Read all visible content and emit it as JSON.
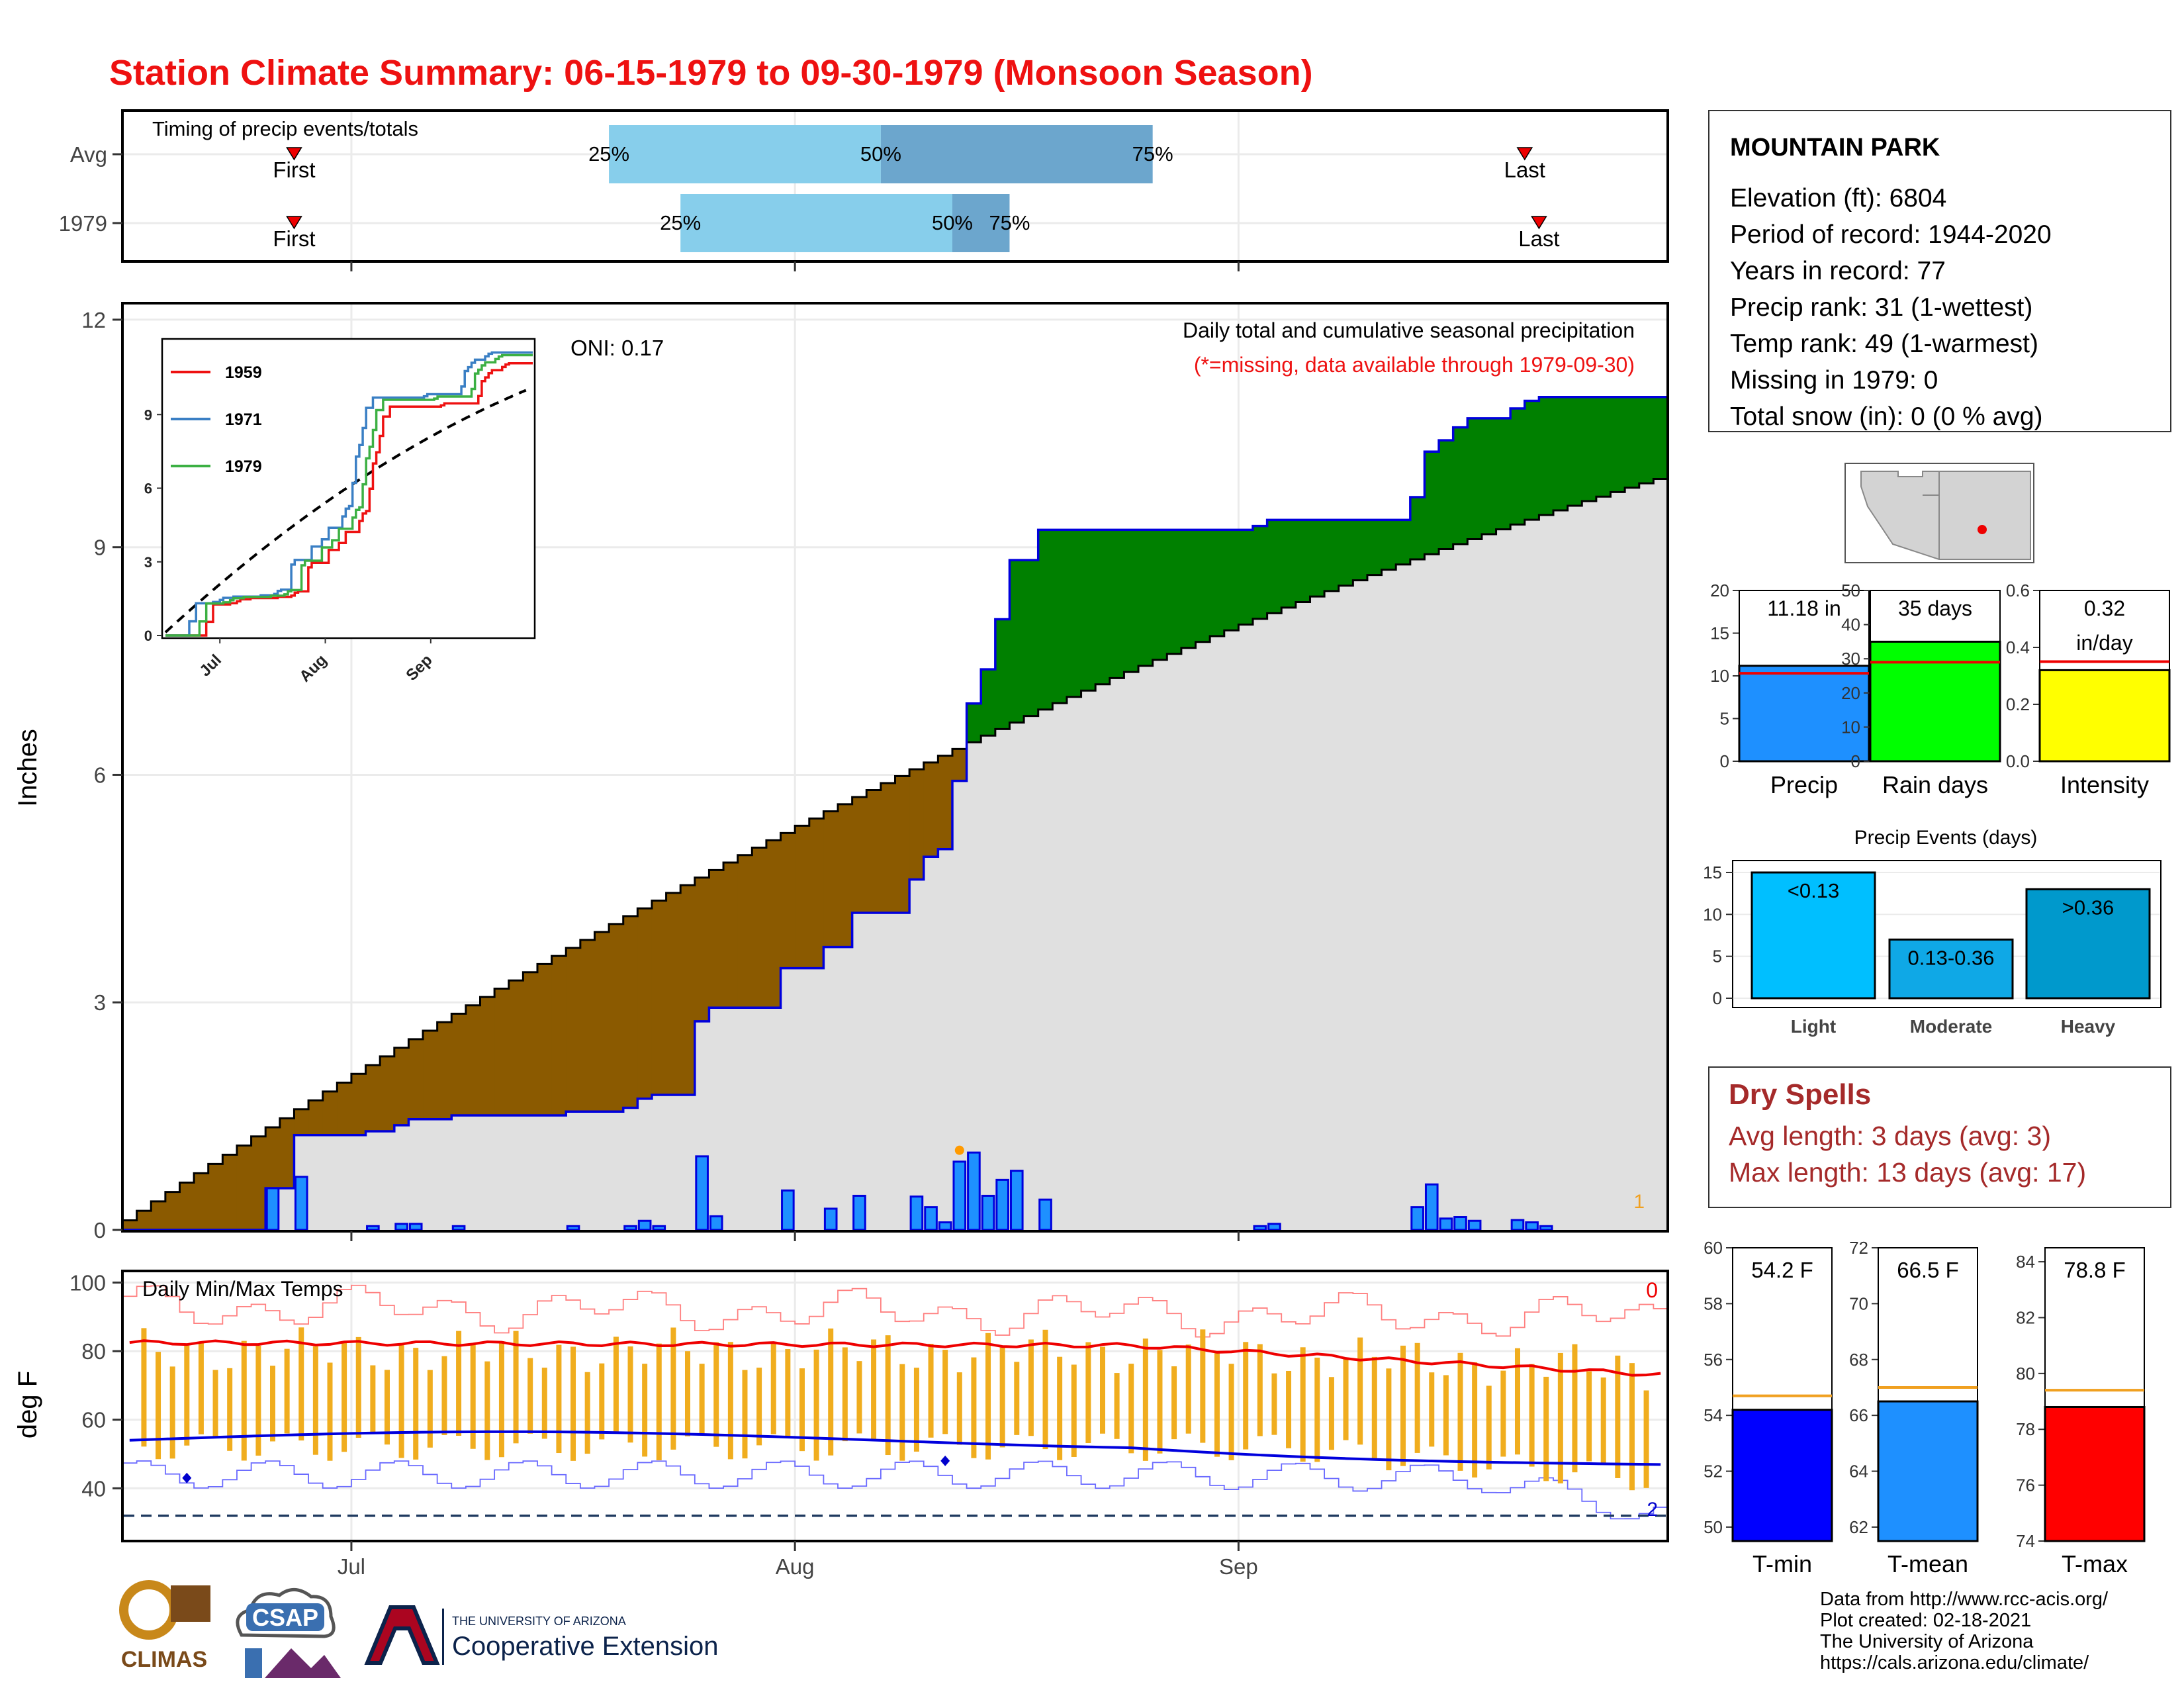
{
  "title": "Station Climate Summary: 06-15-1979 to 09-30-1979 (Monsoon Season)",
  "colors": {
    "title_red": "#ee1111",
    "cum_fill": "#e0e0e0",
    "deficit": "#8b5a00",
    "surplus": "#008000",
    "daily_bar": "#1e90ff",
    "outline_blue": "#0000dd",
    "tmax_line": "#ee0000",
    "tmin_line": "#0000dd",
    "temp_bar": "#f0ad1e",
    "light": "#00bfff",
    "moderate": "#0fa8e6",
    "heavy": "#0099cc",
    "dry_red": "#a52a2a"
  },
  "timing": {
    "label": "Timing of precip events/totals",
    "rows": [
      {
        "name": "Avg",
        "first_label": "First",
        "last_label": "Last",
        "first_day": 12,
        "last_day": 98,
        "p25_label": "25%",
        "p50_label": "50%",
        "p75_label": "75%",
        "p25_day": 34,
        "p50_day": 53,
        "p75_day": 72
      },
      {
        "name": "1979",
        "first_label": "First",
        "last_label": "Last",
        "first_day": 12,
        "last_day": 99,
        "p25_label": "25%",
        "p50_label": "50%",
        "p75_label": "75%",
        "p25_day": 39,
        "p50_day": 58,
        "p75_day": 62
      }
    ]
  },
  "main": {
    "ylabel": "Inches",
    "yticks": [
      "0",
      "3",
      "6",
      "9",
      "12"
    ],
    "ylim": [
      0,
      12.2
    ],
    "caption1": "Daily total and cumulative seasonal precipitation",
    "caption2": "(*=missing, data available through 1979-09-30)",
    "oni": "ONI: 0.17",
    "corner_count": "1"
  },
  "xaxis": {
    "labels": [
      "Jul",
      "Aug",
      "Sep"
    ],
    "days": [
      16,
      47,
      78
    ],
    "ndays": 108
  },
  "inset": {
    "yticks": [
      "0",
      "3",
      "6",
      "9"
    ],
    "xticks": [
      "Jul",
      "Aug",
      "Sep"
    ],
    "legend": [
      {
        "name": "1959",
        "color": "#ee1111"
      },
      {
        "name": "1971",
        "color": "#3a7fc4"
      },
      {
        "name": "1979",
        "color": "#3cb043"
      }
    ]
  },
  "temps": {
    "ylabel": "deg F",
    "title": "Daily Min/Max Temps",
    "yticks": [
      "40",
      "60",
      "80",
      "100"
    ],
    "ylim": [
      25,
      103
    ],
    "top_count": "0",
    "bottom_count": "2",
    "freeze_line": 32
  },
  "station": {
    "name": "MOUNTAIN PARK",
    "lines": [
      "Elevation (ft): 6804",
      "Period of record: 1944-2020",
      "Years in record: 77",
      "Precip rank: 31 (1-wettest)",
      "Temp rank: 49 (1-warmest)",
      "Missing in 1979: 0",
      "Total snow (in): 0 (0 % avg)"
    ]
  },
  "precip_bars": [
    {
      "label": "Precip",
      "value_label": "11.18 in",
      "value": 11.18,
      "avg": 10.3,
      "yticks": [
        "0",
        "5",
        "10",
        "15",
        "20"
      ],
      "ymax": 20,
      "color": "#1e90ff"
    },
    {
      "label": "Rain days",
      "value_label": "35 days",
      "value": 35,
      "avg": 29,
      "yticks": [
        "0",
        "10",
        "20",
        "30",
        "40",
        "50"
      ],
      "ymax": 50,
      "color": "#00ff00"
    },
    {
      "label": "Intensity",
      "value_label": "0.32",
      "value_label2": "in/day",
      "value": 0.32,
      "avg": 0.35,
      "yticks": [
        "0.0",
        "0.2",
        "0.4",
        "0.6"
      ],
      "ymax": 0.6,
      "color": "#ffff00"
    }
  ],
  "precip_events": {
    "title": "Precip Events (days)",
    "yticks": [
      "0",
      "5",
      "10",
      "15"
    ],
    "ymax": 15,
    "categories": [
      "Light",
      "Moderate",
      "Heavy"
    ],
    "labels": [
      "<0.13",
      "0.13-0.36",
      ">0.36"
    ],
    "values": [
      15,
      7,
      13
    ]
  },
  "dry_spells": {
    "title": "Dry Spells",
    "avg_length": "Avg length: 3 days (avg: 3)",
    "max_length": "Max length: 13 days (avg: 17)"
  },
  "temp_bars": [
    {
      "label": "T-min",
      "value_label": "54.2 F",
      "value": 54.2,
      "avg": 54.7,
      "ymin": 49.5,
      "ymax": 60,
      "yticks": [
        "50",
        "52",
        "54",
        "56",
        "58",
        "60"
      ],
      "color": "#0000ff"
    },
    {
      "label": "T-mean",
      "value_label": "66.5 F",
      "value": 66.5,
      "avg": 67.0,
      "ymin": 61.5,
      "ymax": 72,
      "yticks": [
        "62",
        "64",
        "66",
        "68",
        "70",
        "72"
      ],
      "color": "#1e90ff"
    },
    {
      "label": "T-max",
      "value_label": "78.8 F",
      "value": 78.8,
      "avg": 79.4,
      "ymin": 74,
      "ymax": 84.5,
      "yticks": [
        "74",
        "76",
        "78",
        "80",
        "82",
        "84"
      ],
      "color": "#ff0000"
    }
  ],
  "footer": {
    "lines": [
      "Data from http://www.rcc-acis.org/",
      "Plot created: 02-18-2021",
      "The University of Arizona",
      "https://cals.arizona.edu/climate/"
    ],
    "logo_climas": "CLIMAS",
    "logo_csap": "CSAP",
    "ua_small": "THE UNIVERSITY OF ARIZONA",
    "ua_big": "Cooperative Extension"
  },
  "chart_data": {
    "type": "area",
    "title": "Station Climate Summary: 06-15-1979 to 09-30-1979 (Monsoon Season)",
    "ylabel": "Inches",
    "x_dates": "06-15-1979 to 09-30-1979",
    "ylim": [
      0,
      12
    ],
    "cumulative_1979_total": 11.18,
    "cumulative_avg_end": 9.9,
    "daily_precip": [
      {
        "day": 10,
        "value": 0.55
      },
      {
        "day": 12,
        "value": 0.7
      },
      {
        "day": 17,
        "value": 0.05
      },
      {
        "day": 19,
        "value": 0.08
      },
      {
        "day": 20,
        "value": 0.08
      },
      {
        "day": 23,
        "value": 0.05
      },
      {
        "day": 31,
        "value": 0.05
      },
      {
        "day": 35,
        "value": 0.05
      },
      {
        "day": 36,
        "value": 0.12
      },
      {
        "day": 37,
        "value": 0.05
      },
      {
        "day": 40,
        "value": 0.97
      },
      {
        "day": 41,
        "value": 0.18
      },
      {
        "day": 46,
        "value": 0.52
      },
      {
        "day": 49,
        "value": 0.28
      },
      {
        "day": 51,
        "value": 0.45
      },
      {
        "day": 55,
        "value": 0.44
      },
      {
        "day": 56,
        "value": 0.3
      },
      {
        "day": 57,
        "value": 0.1
      },
      {
        "day": 58,
        "value": 0.9
      },
      {
        "day": 59,
        "value": 1.02
      },
      {
        "day": 60,
        "value": 0.45
      },
      {
        "day": 61,
        "value": 0.66
      },
      {
        "day": 62,
        "value": 0.78
      },
      {
        "day": 64,
        "value": 0.4
      },
      {
        "day": 79,
        "value": 0.05
      },
      {
        "day": 80,
        "value": 0.08
      },
      {
        "day": 90,
        "value": 0.3
      },
      {
        "day": 91,
        "value": 0.6
      },
      {
        "day": 92,
        "value": 0.15
      },
      {
        "day": 93,
        "value": 0.17
      },
      {
        "day": 94,
        "value": 0.12
      },
      {
        "day": 97,
        "value": 0.13
      },
      {
        "day": 98,
        "value": 0.1
      },
      {
        "day": 99,
        "value": 0.05
      }
    ]
  }
}
